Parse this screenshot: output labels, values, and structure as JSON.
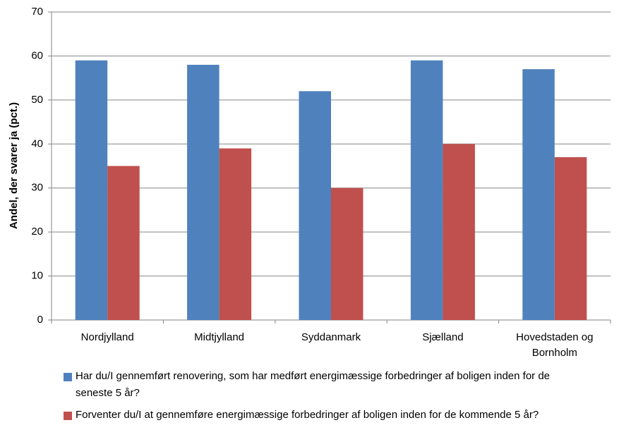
{
  "chart_data": {
    "type": "bar",
    "y_label": "Andel, der svarer ja (pct.)",
    "categories": [
      "Nordjylland",
      "Midtjylland",
      "Syddanmark",
      "Sjælland",
      "Hovedstaden og Bornholm"
    ],
    "series": [
      {
        "name": "Har du/I gennemført renovering, som har medført energimæssige forbedringer af boligen inden for de seneste 5 år?",
        "color": "#4f81bd",
        "values": [
          59,
          58,
          52,
          59,
          57
        ]
      },
      {
        "name": "Forventer du/I at gennemføre energimæssige forbedringer af boligen inden for de kommende 5 år?",
        "color": "#c0504d",
        "values": [
          35,
          39,
          30,
          40,
          37
        ]
      }
    ],
    "ylim": [
      0,
      70
    ],
    "yticks": [
      0,
      10,
      20,
      30,
      40,
      50,
      60,
      70
    ],
    "grid": true
  }
}
